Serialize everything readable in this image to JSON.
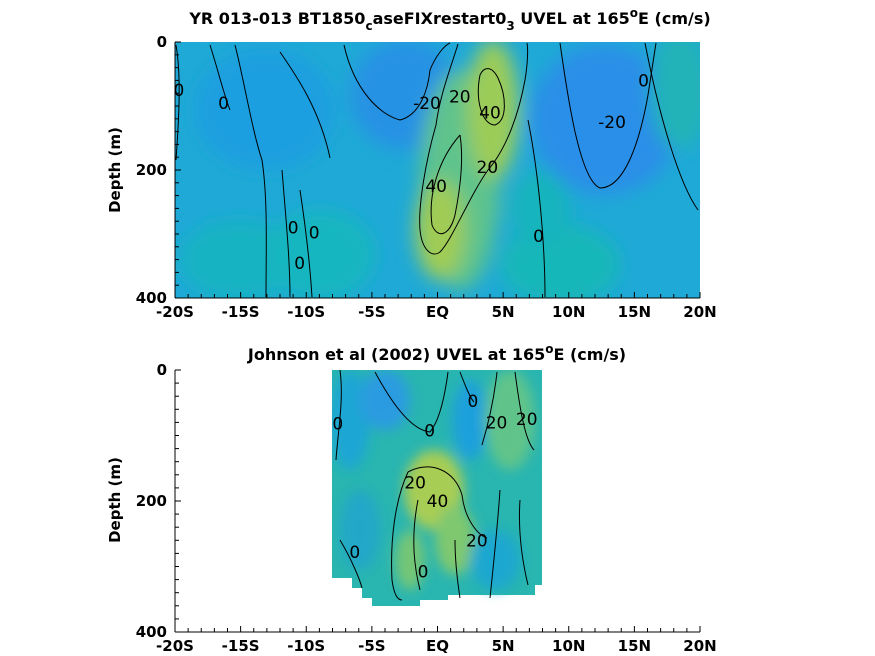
{
  "chart_data": [
    {
      "type": "heatmap",
      "title_main": "YR 013-013 BT1850",
      "title_sub1": "c",
      "title_mid": "aseFIXrestart0",
      "title_sub2": "3",
      "title_mid2": " UVEL at 165",
      "title_sup": "o",
      "title_end": "E (cm/s)",
      "ylabel": "Depth (m)",
      "xlim": [
        -20,
        20
      ],
      "ylim": [
        0,
        400
      ],
      "xticks": [
        -20,
        -15,
        -10,
        -5,
        0,
        5,
        10,
        15,
        20
      ],
      "xtick_labels": [
        "-20S",
        "-15S",
        "-10S",
        "-5S",
        "EQ",
        "5N",
        "10N",
        "15N",
        "20N"
      ],
      "yticks": [
        0,
        200,
        400
      ],
      "ytick_labels": [
        "0",
        "200",
        "400"
      ],
      "contour_levels": [
        -20,
        0,
        20,
        40
      ],
      "contour_labels": [
        {
          "text": "0",
          "x": -19.7,
          "y": 75
        },
        {
          "text": "0",
          "x": -16.3,
          "y": 95
        },
        {
          "text": "-20",
          "x": -0.8,
          "y": 95
        },
        {
          "text": "20",
          "x": 1.7,
          "y": 85
        },
        {
          "text": "40",
          "x": 4.0,
          "y": 110
        },
        {
          "text": "20",
          "x": 3.8,
          "y": 195
        },
        {
          "text": "40",
          "x": -0.1,
          "y": 225
        },
        {
          "text": "0",
          "x": 15.7,
          "y": 60
        },
        {
          "text": "-20",
          "x": 13.3,
          "y": 125
        },
        {
          "text": "0",
          "x": -11.0,
          "y": 290
        },
        {
          "text": "0",
          "x": -9.4,
          "y": 298
        },
        {
          "text": "0",
          "x": -10.5,
          "y": 345
        },
        {
          "text": "0",
          "x": 7.7,
          "y": 303
        }
      ]
    },
    {
      "type": "heatmap",
      "title_main": "Johnson et al (2002) UVEL at 165",
      "title_sup": "o",
      "title_end": "E (cm/s)",
      "ylabel": "Depth (m)",
      "xlim": [
        -20,
        20
      ],
      "ylim": [
        0,
        400
      ],
      "xticks": [
        -20,
        -15,
        -10,
        -5,
        0,
        5,
        10,
        15,
        20
      ],
      "xtick_labels": [
        "-20S",
        "-15S",
        "-10S",
        "-5S",
        "EQ",
        "5N",
        "10N",
        "15N",
        "20N"
      ],
      "yticks": [
        0,
        200,
        400
      ],
      "ytick_labels": [
        "0",
        "200",
        "400"
      ],
      "data_extent_x": [
        -8,
        8
      ],
      "contour_levels": [
        0,
        20,
        40
      ],
      "contour_labels": [
        {
          "text": "0",
          "x": -7.6,
          "y": 82
        },
        {
          "text": "0",
          "x": -0.6,
          "y": 92
        },
        {
          "text": "0",
          "x": 2.7,
          "y": 47
        },
        {
          "text": "20",
          "x": 4.5,
          "y": 80
        },
        {
          "text": "20",
          "x": 6.8,
          "y": 75
        },
        {
          "text": "20",
          "x": -1.7,
          "y": 172
        },
        {
          "text": "40",
          "x": 0.0,
          "y": 200
        },
        {
          "text": "20",
          "x": 3.0,
          "y": 260
        },
        {
          "text": "0",
          "x": -6.3,
          "y": 278
        },
        {
          "text": "0",
          "x": -1.1,
          "y": 308
        }
      ]
    }
  ],
  "colors": {
    "negative": "#2b8fe8",
    "zero": "#14b5b8",
    "positive": "#c6d23a"
  }
}
